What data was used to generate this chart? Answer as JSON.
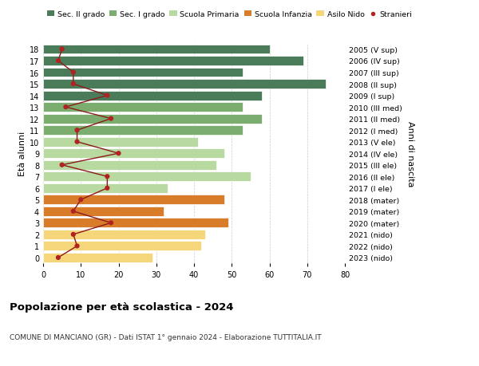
{
  "ages": [
    18,
    17,
    16,
    15,
    14,
    13,
    12,
    11,
    10,
    9,
    8,
    7,
    6,
    5,
    4,
    3,
    2,
    1,
    0
  ],
  "years": [
    "2005 (V sup)",
    "2006 (IV sup)",
    "2007 (III sup)",
    "2008 (II sup)",
    "2009 (I sup)",
    "2010 (III med)",
    "2011 (II med)",
    "2012 (I med)",
    "2013 (V ele)",
    "2014 (IV ele)",
    "2015 (III ele)",
    "2016 (II ele)",
    "2017 (I ele)",
    "2018 (mater)",
    "2019 (mater)",
    "2020 (mater)",
    "2021 (nido)",
    "2022 (nido)",
    "2023 (nido)"
  ],
  "bar_values": [
    60,
    69,
    53,
    75,
    58,
    53,
    58,
    53,
    41,
    48,
    46,
    55,
    33,
    48,
    32,
    49,
    43,
    42,
    29
  ],
  "stranieri": [
    5,
    4,
    8,
    8,
    17,
    6,
    18,
    9,
    9,
    20,
    5,
    17,
    17,
    10,
    8,
    18,
    8,
    9,
    4
  ],
  "bar_colors": [
    "#4a7c59",
    "#4a7c59",
    "#4a7c59",
    "#4a7c59",
    "#4a7c59",
    "#7aad6e",
    "#7aad6e",
    "#7aad6e",
    "#b8d9a0",
    "#b8d9a0",
    "#b8d9a0",
    "#b8d9a0",
    "#b8d9a0",
    "#d97c2a",
    "#d97c2a",
    "#d97c2a",
    "#f5d67a",
    "#f5d67a",
    "#f5d67a"
  ],
  "legend_labels": [
    "Sec. II grado",
    "Sec. I grado",
    "Scuola Primaria",
    "Scuola Infanzia",
    "Asilo Nido",
    "Stranieri"
  ],
  "legend_colors": [
    "#4a7c59",
    "#7aad6e",
    "#b8d9a0",
    "#d97c2a",
    "#f5d67a",
    "#b22222"
  ],
  "title": "Popolazione per età scolastica - 2024",
  "subtitle": "COMUNE DI MANCIANO (GR) - Dati ISTAT 1° gennaio 2024 - Elaborazione TUTTITALIA.IT",
  "ylabel_left": "Età alunni",
  "ylabel_right": "Anni di nascita",
  "xlim": [
    0,
    80
  ],
  "xticks": [
    0,
    10,
    20,
    30,
    40,
    50,
    60,
    70,
    80
  ],
  "stranieri_color": "#b22222",
  "stranieri_line_color": "#8b1a1a",
  "background_color": "#ffffff",
  "grid_color": "#cccccc"
}
